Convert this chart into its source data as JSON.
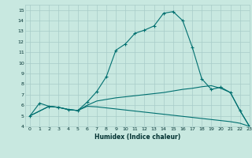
{
  "xlabel": "Humidex (Indice chaleur)",
  "background_color": "#c8e8e0",
  "grid_color": "#a8ccc8",
  "line_color": "#007070",
  "xlim": [
    -0.5,
    23
  ],
  "ylim": [
    4,
    15.5
  ],
  "xticks": [
    0,
    1,
    2,
    3,
    4,
    5,
    6,
    7,
    8,
    9,
    10,
    11,
    12,
    13,
    14,
    15,
    16,
    17,
    18,
    19,
    20,
    21,
    22,
    23
  ],
  "yticks": [
    4,
    5,
    6,
    7,
    8,
    9,
    10,
    11,
    12,
    13,
    14,
    15
  ],
  "line1_x": [
    0,
    1,
    2,
    3,
    4,
    5,
    6,
    7,
    8,
    9,
    10,
    11,
    12,
    13,
    14,
    15,
    16,
    17,
    18,
    19,
    20,
    21,
    22,
    23
  ],
  "line1_y": [
    5.0,
    6.2,
    5.9,
    5.8,
    5.6,
    5.5,
    6.3,
    7.3,
    8.7,
    11.2,
    11.8,
    12.8,
    13.1,
    13.5,
    14.7,
    14.85,
    14.0,
    11.5,
    8.5,
    7.5,
    7.7,
    7.2,
    5.5,
    4.0
  ],
  "line2_x": [
    0,
    2,
    3,
    4,
    5,
    6,
    7,
    8,
    9,
    10,
    11,
    12,
    13,
    14,
    15,
    16,
    17,
    18,
    19,
    20,
    21,
    22,
    23
  ],
  "line2_y": [
    5.0,
    5.9,
    5.8,
    5.6,
    5.5,
    6.0,
    6.4,
    6.55,
    6.7,
    6.8,
    6.9,
    7.0,
    7.1,
    7.2,
    7.35,
    7.5,
    7.6,
    7.75,
    7.85,
    7.6,
    7.2,
    5.5,
    4.0
  ],
  "line3_x": [
    0,
    2,
    3,
    4,
    5,
    6,
    7,
    8,
    9,
    10,
    11,
    12,
    13,
    14,
    15,
    16,
    17,
    18,
    19,
    20,
    21,
    22,
    23
  ],
  "line3_y": [
    5.0,
    5.9,
    5.8,
    5.6,
    5.5,
    5.9,
    5.85,
    5.75,
    5.65,
    5.55,
    5.45,
    5.35,
    5.25,
    5.15,
    5.05,
    4.95,
    4.85,
    4.75,
    4.65,
    4.55,
    4.45,
    4.3,
    4.0
  ]
}
